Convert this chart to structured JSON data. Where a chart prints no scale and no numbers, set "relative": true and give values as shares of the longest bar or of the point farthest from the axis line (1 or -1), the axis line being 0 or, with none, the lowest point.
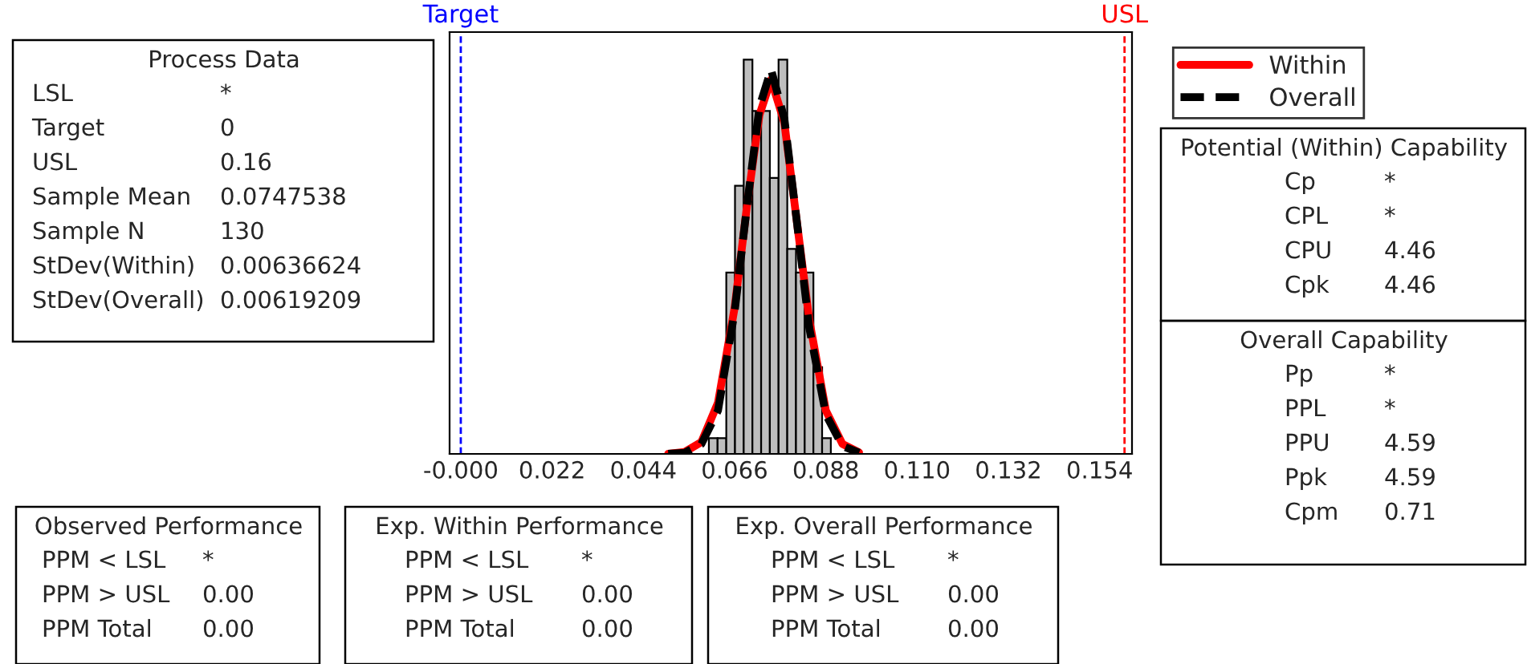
{
  "chart_data": {
    "type": "histogram",
    "relative": true,
    "bins": [
      0.0598,
      0.0619,
      0.064,
      0.0661,
      0.0682,
      0.0703,
      0.0724,
      0.0745,
      0.0766,
      0.0787,
      0.0808,
      0.0829,
      0.085,
      0.0871,
      0.0892
    ],
    "values": [
      0.04,
      0.04,
      0.46,
      0.68,
      1.0,
      0.87,
      0.87,
      0.7,
      1.0,
      0.52,
      0.46,
      0.46,
      0.22,
      0.04
    ],
    "color": "#bebebe",
    "series": [
      {
        "type": "line",
        "name": "Within",
        "color": "#ff0000",
        "line_style": "solid",
        "x": [
          0.05,
          0.054,
          0.058,
          0.062,
          0.066,
          0.069,
          0.072,
          0.0748,
          0.078,
          0.081,
          0.084,
          0.088,
          0.092,
          0.096
        ],
        "values": [
          0.0005,
          0.005,
          0.03,
          0.13,
          0.37,
          0.63,
          0.86,
          0.95,
          0.84,
          0.59,
          0.34,
          0.11,
          0.025,
          0.004
        ]
      },
      {
        "type": "line",
        "name": "Overall",
        "color": "#000000",
        "line_style": "dashed",
        "x": [
          0.05,
          0.054,
          0.058,
          0.062,
          0.066,
          0.069,
          0.072,
          0.0748,
          0.078,
          0.081,
          0.084,
          0.088,
          0.092,
          0.096
        ],
        "values": [
          0.0003,
          0.003,
          0.025,
          0.11,
          0.36,
          0.63,
          0.88,
          0.975,
          0.85,
          0.59,
          0.32,
          0.1,
          0.02,
          0.003
        ]
      }
    ],
    "xlim": [
      -0.0027,
      0.1618
    ],
    "xticks": [
      {
        "value": 0,
        "label": "-0.000"
      },
      0.022,
      0.044,
      0.066,
      0.088,
      {
        "value": 0.11,
        "label": "0.110"
      },
      0.132,
      0.154
    ],
    "ref_lines": [
      {
        "axis": "x",
        "value": 0,
        "label": "Target",
        "color": "#0000ff",
        "line_style": "dashed"
      },
      {
        "axis": "x",
        "value": 0.16,
        "label": "USL",
        "color": "#ff0000",
        "line_style": "dashed"
      }
    ],
    "legend": "right",
    "annotations": [
      "Process Data\nLSL\t*\nTarget\t0\nUSL\t0.16\nSample Mean\t0.0747538\nSample N\t130\nStDev(Within)\t0.00636624\nStDev(Overall)\t0.00619209",
      "Observed Performance\nPPM < LSL\t*\nPPM > USL\t0.00\nPPM Total\t0.00",
      "Exp. Within Performance\nPPM < LSL\t*\nPPM > USL\t0.00\nPPM Total\t0.00",
      "Exp. Overall Performance\nPPM < LSL\t*\nPPM > USL\t0.00\nPPM Total\t0.00",
      "Potential (Within) Capability\nCp\t*\nCPL\t*\nCPU\t4.46\nCpk\t4.46",
      "Overall Capability\nPp\t*\nPPL\t*\nPPU\t4.59\nPpk\t4.59\nCpm\t0.71"
    ]
  }
}
